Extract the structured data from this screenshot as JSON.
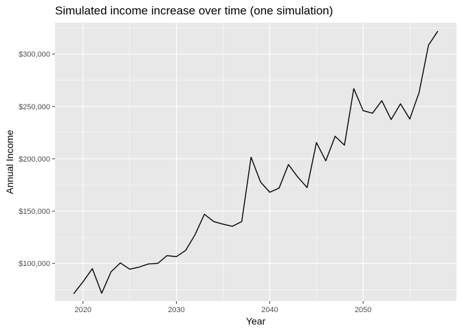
{
  "chart_data": {
    "type": "line",
    "title": "Simulated income increase over time (one simulation)",
    "xlabel": "Year",
    "ylabel": "Annual Income",
    "xlim": [
      2017,
      2060
    ],
    "ylim": [
      64000,
      330000
    ],
    "x_ticks": [
      {
        "value": 2020,
        "label": "2020"
      },
      {
        "value": 2030,
        "label": "2030"
      },
      {
        "value": 2040,
        "label": "2040"
      },
      {
        "value": 2050,
        "label": "2050"
      }
    ],
    "y_ticks": [
      {
        "value": 100000,
        "label": "$100,000"
      },
      {
        "value": 150000,
        "label": "$150,000"
      },
      {
        "value": 200000,
        "label": "$200,000"
      },
      {
        "value": 250000,
        "label": "$250,000"
      },
      {
        "value": 300000,
        "label": "$300,000"
      }
    ],
    "grid": true,
    "background_color": "#e8e8e8",
    "grid_color": "#ffffff",
    "line_color": "#000000",
    "series": [
      {
        "x": [
          2019,
          2020,
          2021,
          2022,
          2023,
          2024,
          2025,
          2026,
          2027,
          2028,
          2029,
          2030,
          2031,
          2032,
          2033,
          2034,
          2035,
          2036,
          2037,
          2038,
          2039,
          2040,
          2041,
          2042,
          2043,
          2044,
          2045,
          2046,
          2047,
          2048,
          2049,
          2050,
          2051,
          2052,
          2053,
          2054,
          2055,
          2056,
          2057,
          2058
        ],
        "values": [
          71000,
          82500,
          95000,
          71500,
          92000,
          100500,
          94500,
          96500,
          99500,
          100000,
          107500,
          106500,
          112500,
          127500,
          147000,
          140000,
          137500,
          135500,
          140000,
          201500,
          178000,
          168000,
          172000,
          194500,
          182500,
          172500,
          215500,
          198000,
          221500,
          213000,
          267000,
          246000,
          243500,
          255500,
          237500,
          252500,
          238000,
          263500,
          308500,
          322000
        ]
      }
    ]
  }
}
